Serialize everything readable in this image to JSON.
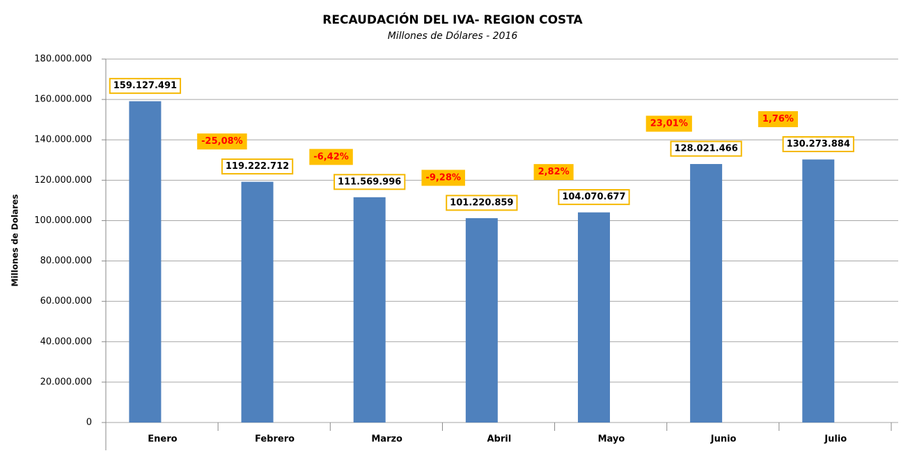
{
  "chart_data": {
    "type": "bar",
    "title": "RECAUDACIÓN DEL IVA- REGION COSTA",
    "subtitle": "Millones de Dólares - 2016",
    "y_label": "Millones de Dolares",
    "categories": [
      "Enero",
      "Febrero",
      "Marzo",
      "Abril",
      "Mayo",
      "Junio",
      "Julio"
    ],
    "values": [
      159127491,
      119222712,
      111569996,
      101220859,
      104070677,
      128021466,
      130273884
    ],
    "value_labels": [
      "159.127.491",
      "119.222.712",
      "111.569.996",
      "101.220.859",
      "104.070.677",
      "128.021.466",
      "130.273.884"
    ],
    "changes": [
      null,
      "-25,08%",
      "-6,42%",
      "-9,28%",
      "2,82%",
      "23,01%",
      "1,76%"
    ],
    "color": "#4f81bd",
    "ylim": [
      0,
      180000000
    ],
    "yticks": [
      0,
      {
        "value": 20000000,
        "label": "20.000.000"
      },
      {
        "value": 40000000,
        "label": "40.000.000"
      },
      {
        "value": 60000000,
        "label": "60.000.000"
      },
      {
        "value": 80000000,
        "label": "80.000.000"
      },
      {
        "value": 100000000,
        "label": "100.000.000"
      },
      {
        "value": 120000000,
        "label": "120.000.000"
      },
      {
        "value": 140000000,
        "label": "140.000.000"
      },
      {
        "value": 160000000,
        "label": "160.000.000"
      },
      {
        "value": 180000000,
        "label": "180.000.000"
      }
    ],
    "grid": true
  }
}
